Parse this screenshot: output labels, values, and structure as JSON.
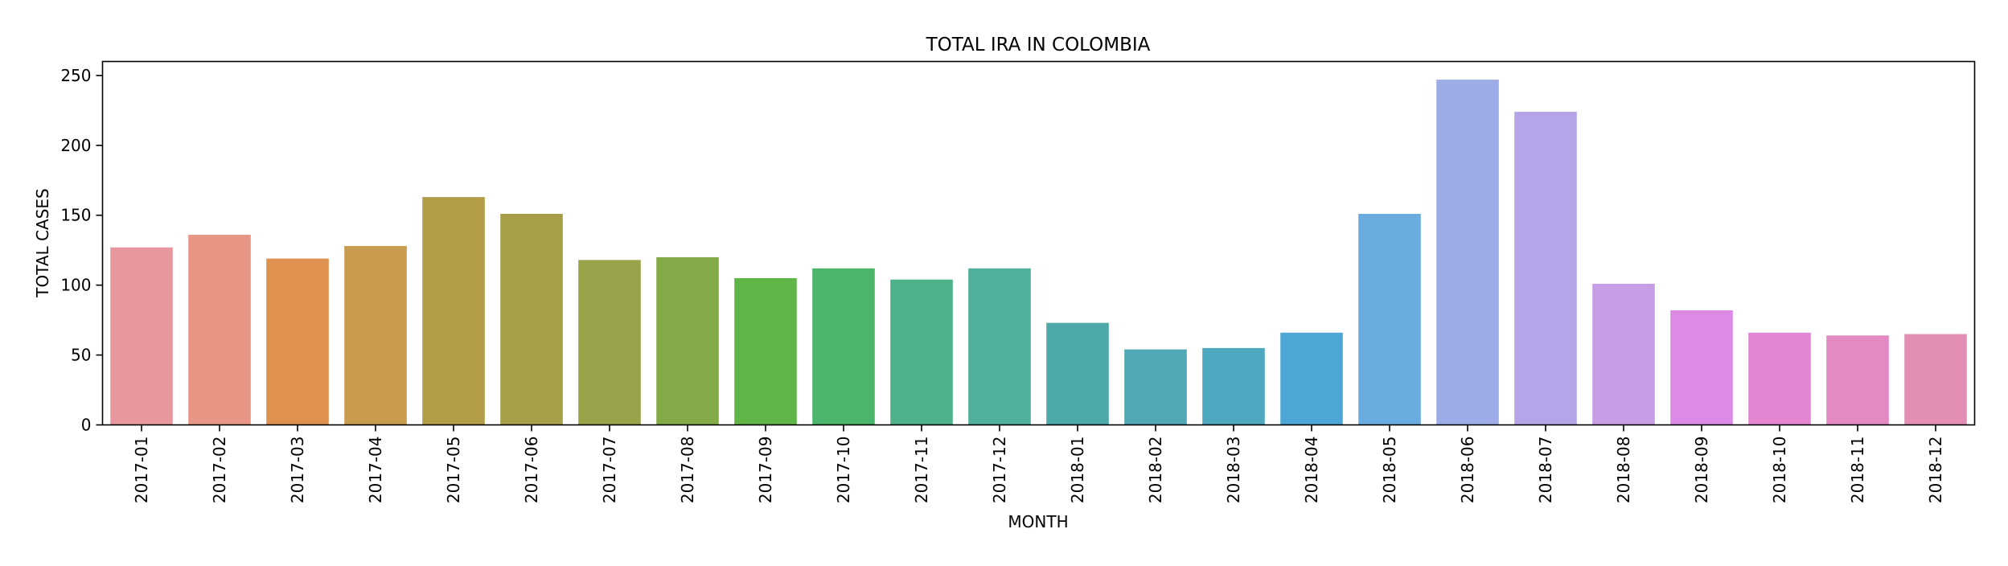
{
  "chart_data": {
    "type": "bar",
    "title": "TOTAL IRA IN COLOMBIA",
    "xlabel": "MONTH",
    "ylabel": "TOTAL CASES",
    "ylim": [
      0,
      260
    ],
    "yticks": [
      0,
      50,
      100,
      150,
      200,
      250
    ],
    "grid": false,
    "legend": "none",
    "categories": [
      "2017-01",
      "2017-02",
      "2017-03",
      "2017-04",
      "2017-05",
      "2017-06",
      "2017-07",
      "2017-08",
      "2017-09",
      "2017-10",
      "2017-11",
      "2017-12",
      "2018-01",
      "2018-02",
      "2018-03",
      "2018-04",
      "2018-05",
      "2018-06",
      "2018-07",
      "2018-08",
      "2018-09",
      "2018-10",
      "2018-11",
      "2018-12"
    ],
    "values": [
      127,
      136,
      119,
      128,
      163,
      151,
      118,
      120,
      105,
      112,
      104,
      112,
      73,
      54,
      55,
      66,
      151,
      247,
      224,
      101,
      82,
      66,
      64,
      65
    ],
    "colors": [
      "#e8979f",
      "#e89684",
      "#df9150",
      "#c99b4f",
      "#b39c48",
      "#a79e48",
      "#99a349",
      "#84aa48",
      "#5fb546",
      "#4bb56c",
      "#4eb189",
      "#4eb09d",
      "#4ea9a9",
      "#4fa8b3",
      "#4ea8c0",
      "#4ea6d7",
      "#69acdf",
      "#9dabe7",
      "#b5a4e7",
      "#c79de6",
      "#dc8ae6",
      "#e385d3",
      "#e38ac3",
      "#e38fb5"
    ]
  }
}
